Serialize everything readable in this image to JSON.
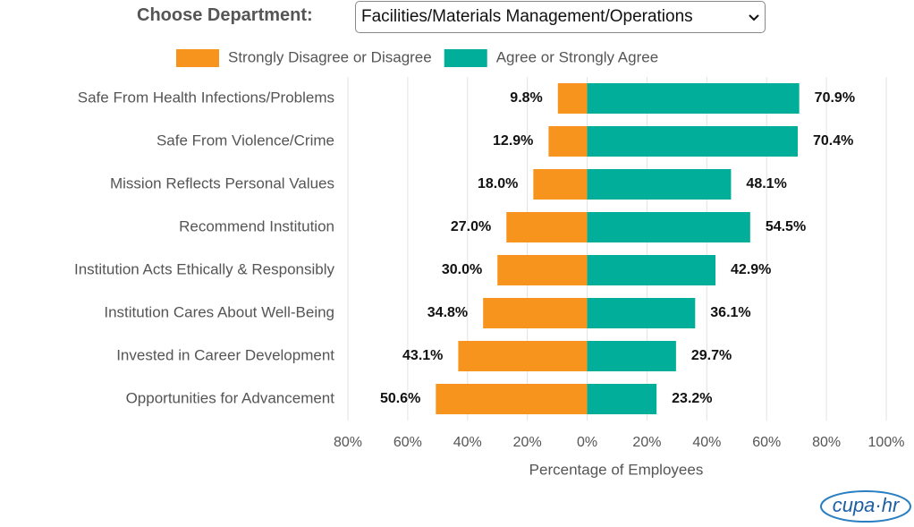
{
  "header": {
    "label": "Choose Department:",
    "selected": "Facilities/Materials Management/Operations"
  },
  "logo": "cupa·hr",
  "chart_data": {
    "type": "diverging-bar",
    "categories": [
      "Safe From Health Infections/Problems",
      "Safe From Violence/Crime",
      "Mission Reflects Personal Values",
      "Recommend Institution",
      "Institution Acts Ethically & Responsibly",
      "Institution Cares About Well-Being",
      "Invested in Career Development",
      "Opportunities for Advancement"
    ],
    "series": [
      {
        "name": "Strongly Disagree or Disagree",
        "color": "#f7941d",
        "values": [
          -9.8,
          -12.9,
          -18.0,
          -27.0,
          -30.0,
          -34.8,
          -43.1,
          -50.6
        ],
        "value_labels": [
          "9.8%",
          "12.9%",
          "18.0%",
          "27.0%",
          "30.0%",
          "34.8%",
          "43.1%",
          "50.6%"
        ]
      },
      {
        "name": "Agree or Strongly Agree",
        "color": "#00ae9a",
        "values": [
          70.9,
          70.4,
          48.1,
          54.5,
          42.9,
          36.1,
          29.7,
          23.2
        ],
        "value_labels": [
          "70.9%",
          "70.4%",
          "48.1%",
          "54.5%",
          "42.9%",
          "36.1%",
          "29.7%",
          "23.2%"
        ]
      }
    ],
    "xlabel": "Percentage of Employees",
    "xlim": [
      -80,
      100
    ],
    "xticks": [
      {
        "value": -80,
        "label": "80%"
      },
      {
        "value": -60,
        "label": "60%"
      },
      {
        "value": -40,
        "label": "40%"
      },
      {
        "value": -20,
        "label": "20%"
      },
      {
        "value": 0,
        "label": "0%"
      },
      {
        "value": 20,
        "label": "20%"
      },
      {
        "value": 40,
        "label": "40%"
      },
      {
        "value": 60,
        "label": "60%"
      },
      {
        "value": 80,
        "label": "80%"
      },
      {
        "value": 100,
        "label": "100%"
      }
    ],
    "grid": true
  }
}
